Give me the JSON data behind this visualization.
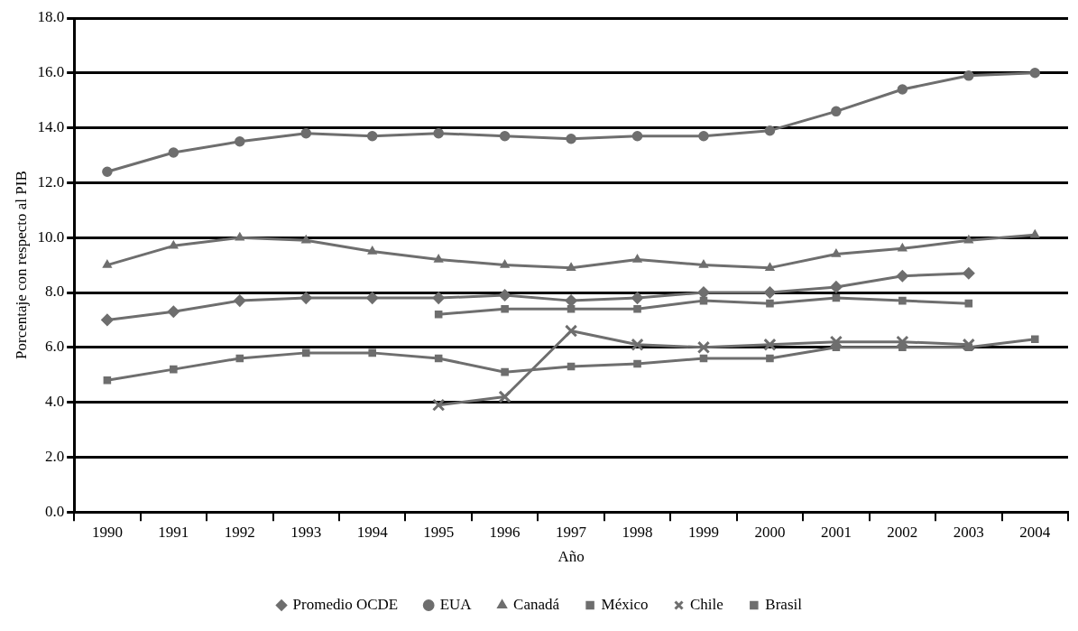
{
  "chart_data": {
    "type": "line",
    "xlabel": "Año",
    "ylabel": "Porcentaje con respecto al PIB",
    "categories": [
      "1990",
      "1991",
      "1992",
      "1993",
      "1994",
      "1995",
      "1996",
      "1997",
      "1998",
      "1999",
      "2000",
      "2001",
      "2002",
      "2003",
      "2004"
    ],
    "ylim": [
      0,
      18
    ],
    "yticks": [
      {
        "value": 0,
        "label": "0.0"
      },
      {
        "value": 2,
        "label": "2.0"
      },
      {
        "value": 4,
        "label": "4.0"
      },
      {
        "value": 6,
        "label": "6.0"
      },
      {
        "value": 8,
        "label": "8.0"
      },
      {
        "value": 10,
        "label": "10.0"
      },
      {
        "value": 12,
        "label": "12.0"
      },
      {
        "value": 14,
        "label": "14.0"
      },
      {
        "value": 16,
        "label": "16.0"
      },
      {
        "value": 18,
        "label": "18.0"
      }
    ],
    "grid": "y",
    "legend": "bottom",
    "line_style": "solid",
    "series": [
      {
        "name": "Promedio OCDE",
        "color": "#6e6e6e",
        "marker": "diamond",
        "values": [
          7.0,
          7.3,
          7.7,
          7.8,
          7.8,
          7.8,
          7.9,
          7.7,
          7.8,
          8.0,
          8.0,
          8.2,
          8.6,
          8.7,
          null
        ]
      },
      {
        "name": "EUA",
        "color": "#6e6e6e",
        "marker": "circle",
        "values": [
          12.4,
          13.1,
          13.5,
          13.8,
          13.7,
          13.8,
          13.7,
          13.6,
          13.7,
          13.7,
          13.9,
          14.6,
          15.4,
          15.9,
          16.0
        ]
      },
      {
        "name": "Canadá",
        "color": "#6e6e6e",
        "marker": "triangle",
        "values": [
          9.0,
          9.7,
          10.0,
          9.9,
          9.5,
          9.2,
          9.0,
          8.9,
          9.2,
          9.0,
          8.9,
          9.4,
          9.6,
          9.9,
          10.1
        ]
      },
      {
        "name": "México",
        "color": "#6e6e6e",
        "marker": "square",
        "values": [
          4.8,
          5.2,
          5.6,
          5.8,
          5.8,
          5.6,
          5.1,
          5.3,
          5.4,
          5.6,
          5.6,
          6.0,
          6.0,
          6.0,
          6.3
        ]
      },
      {
        "name": "Chile",
        "color": "#6e6e6e",
        "marker": "cross",
        "values": [
          null,
          null,
          null,
          null,
          null,
          3.9,
          4.2,
          6.6,
          6.1,
          6.0,
          6.1,
          6.2,
          6.2,
          6.1,
          null
        ]
      },
      {
        "name": "Brasil",
        "color": "#6e6e6e",
        "marker": "square",
        "values": [
          null,
          null,
          null,
          null,
          null,
          7.2,
          7.4,
          7.4,
          7.4,
          7.7,
          7.6,
          7.8,
          7.7,
          7.6,
          null
        ]
      }
    ]
  }
}
